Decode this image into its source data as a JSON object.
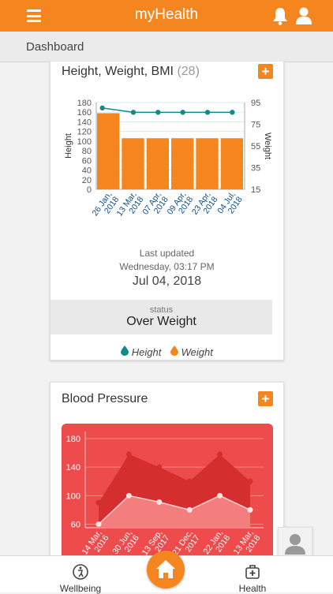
{
  "app": {
    "title": "myHealth"
  },
  "header": {
    "menu_icon": "hamburger-menu-icon",
    "bell_icon": "bell-icon",
    "user_icon": "user-icon"
  },
  "subbar": {
    "label": "Dashboard"
  },
  "hwb_card": {
    "title": "Height, Weight, BMI",
    "count": "(28)",
    "plus_label": "+",
    "last_updated_label": "Last updated",
    "last_updated_day": "Wednesday, 03:17 PM",
    "last_updated_date": "Jul 04, 2018",
    "status_label": "status",
    "status_value": "Over Weight",
    "legend": {
      "height": "Height",
      "weight": "Weight"
    },
    "colors": {
      "bar": "#f5861f",
      "line": "#138a8a",
      "date_label": "#0a4c8a"
    }
  },
  "bp_card": {
    "title": "Blood Pressure",
    "plus_label": "+",
    "colors": {
      "bg": "#ee4c4c",
      "upper": "#d42e2e",
      "lower": "#f47e7e"
    }
  },
  "bottom_nav": {
    "wellbeing": "Wellbeing",
    "health": "Health"
  },
  "chart_data": [
    {
      "type": "bar",
      "categories": [
        "26 Jan, 2018",
        "13 Mar, 2018",
        "07 Apr, 2018",
        "09 Apr, 2018",
        "23 Apr, 2018",
        "04 Jul, 2018"
      ],
      "series": [
        {
          "name": "Height",
          "values": [
            158,
            106,
            106,
            106,
            106,
            106
          ]
        },
        {
          "name": "Weight",
          "values": [
            90,
            86,
            86,
            86,
            86,
            86
          ]
        }
      ],
      "ylabel": "Height",
      "y2label": "Weight",
      "ylim": [
        0,
        180
      ],
      "y2lim": [
        15,
        95
      ],
      "yticks": [
        0,
        20,
        40,
        60,
        80,
        100,
        120,
        140,
        160,
        180
      ],
      "y2ticks": [
        15,
        35,
        55,
        75,
        95
      ]
    },
    {
      "type": "area",
      "categories": [
        "14 Mar, 2016",
        "30 Jun, 2016",
        "13 Sep, 2017",
        "21 Dec, 2017",
        "22 Jan, 2018",
        "13 Mar, 2018"
      ],
      "series": [
        {
          "values": [
            90,
            158,
            140,
            120,
            158,
            120
          ]
        },
        {
          "values": [
            60,
            100,
            91,
            80,
            100,
            80
          ]
        }
      ],
      "ylim": [
        55,
        190
      ],
      "yticks": [
        60,
        100,
        140,
        180
      ]
    }
  ]
}
